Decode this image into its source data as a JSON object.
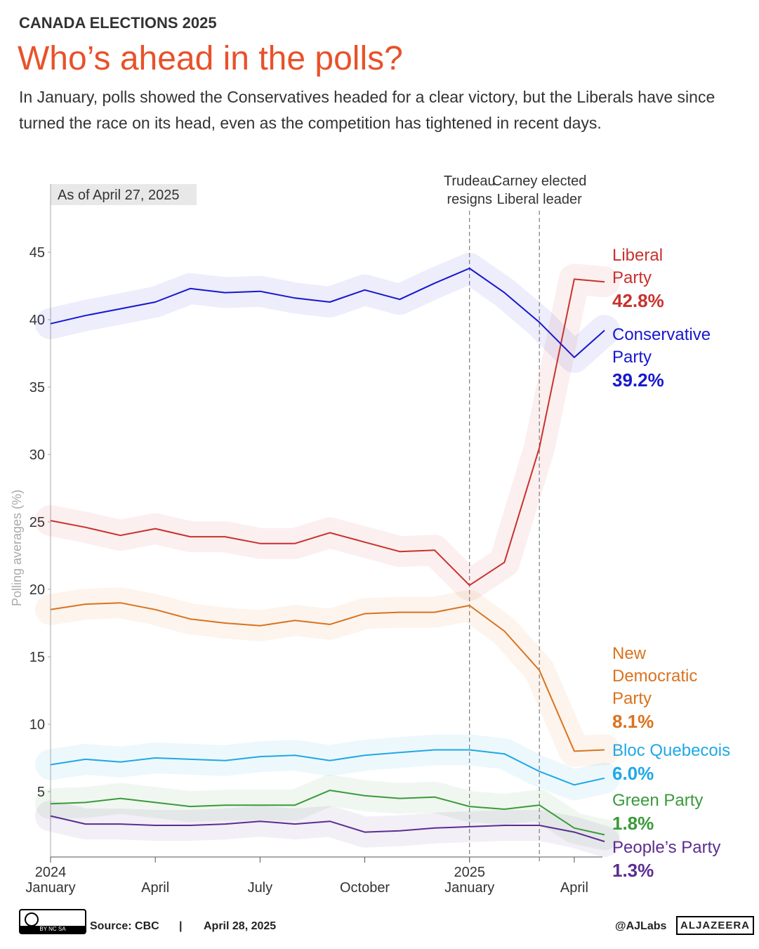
{
  "header": {
    "kicker": "CANADA ELECTIONS 2025",
    "title": "Who’s ahead in the polls?",
    "subtitle": "In January, polls showed the Conservatives headed for a clear victory, but the Liberals have since turned the race on its head,  even as the competition has tightened in recent days."
  },
  "chart_data": {
    "type": "line",
    "note": "As of April 27, 2025",
    "y_label": "Polling averages (%)",
    "x": [
      "2024-01",
      "2024-02",
      "2024-03",
      "2024-04",
      "2024-05",
      "2024-06",
      "2024-07",
      "2024-08",
      "2024-09",
      "2024-10",
      "2024-11",
      "2024-12",
      "2025-01",
      "2025-02",
      "2025-03",
      "2025-04",
      "2025-04-27"
    ],
    "xlim": [
      "2024-01",
      "2025-04-27"
    ],
    "xticks": [
      {
        "value": "2024-01",
        "label": "January",
        "year": "2024"
      },
      {
        "value": "2024-04",
        "label": "April"
      },
      {
        "value": "2024-07",
        "label": "July"
      },
      {
        "value": "2024-10",
        "label": "October"
      },
      {
        "value": "2025-01",
        "label": "January",
        "year": "2025"
      },
      {
        "value": "2025-04",
        "label": "April"
      }
    ],
    "ylim": [
      0,
      50
    ],
    "yticks": [
      5,
      10,
      15,
      20,
      25,
      30,
      35,
      40,
      45
    ],
    "annotations": [
      {
        "text": "Trudeau resigns",
        "x": "2025-01"
      },
      {
        "text": "Carney elected Liberal leader",
        "x": "2025-03"
      }
    ],
    "series": [
      {
        "name": "Liberal Party",
        "color": "#c8322e",
        "values": [
          25.1,
          24.6,
          24.0,
          24.5,
          23.9,
          23.9,
          23.4,
          23.4,
          24.2,
          23.5,
          22.8,
          22.9,
          20.3,
          22.0,
          30.5,
          43.0,
          42.8
        ],
        "value_labels": [
          null,
          null,
          null,
          null,
          null,
          null,
          null,
          null,
          null,
          null,
          null,
          null,
          null,
          null,
          null,
          null,
          "42.8%"
        ]
      },
      {
        "name": "Conservative Party",
        "color": "#1717cf",
        "values": [
          39.7,
          40.3,
          40.8,
          41.3,
          42.3,
          42.0,
          42.1,
          41.6,
          41.3,
          42.2,
          41.5,
          42.7,
          43.8,
          42.0,
          39.8,
          37.2,
          39.2
        ],
        "value_labels": [
          null,
          null,
          null,
          null,
          null,
          null,
          null,
          null,
          null,
          null,
          null,
          null,
          null,
          null,
          null,
          null,
          "39.2%"
        ]
      },
      {
        "name": "New Democratic Party",
        "color": "#d9731f",
        "values": [
          18.5,
          18.9,
          19.0,
          18.5,
          17.8,
          17.5,
          17.3,
          17.7,
          17.4,
          18.2,
          18.3,
          18.3,
          18.8,
          16.9,
          14.0,
          8.0,
          8.1
        ],
        "value_labels": [
          null,
          null,
          null,
          null,
          null,
          null,
          null,
          null,
          null,
          null,
          null,
          null,
          null,
          null,
          null,
          null,
          "8.1%"
        ]
      },
      {
        "name": "Bloc Quebecois",
        "color": "#1fa8e6",
        "values": [
          7.0,
          7.4,
          7.2,
          7.5,
          7.4,
          7.3,
          7.6,
          7.7,
          7.3,
          7.7,
          7.9,
          8.1,
          8.1,
          7.8,
          6.5,
          5.5,
          6.0
        ],
        "value_labels": [
          null,
          null,
          null,
          null,
          null,
          null,
          null,
          null,
          null,
          null,
          null,
          null,
          null,
          null,
          null,
          null,
          "6.0%"
        ]
      },
      {
        "name": "Green Party",
        "color": "#3a9a3a",
        "values": [
          4.1,
          4.2,
          4.5,
          4.2,
          3.9,
          4.0,
          4.0,
          4.0,
          5.1,
          4.7,
          4.5,
          4.6,
          3.9,
          3.7,
          4.0,
          2.3,
          1.8
        ],
        "value_labels": [
          null,
          null,
          null,
          null,
          null,
          null,
          null,
          null,
          null,
          null,
          null,
          null,
          null,
          null,
          null,
          null,
          "1.8%"
        ]
      },
      {
        "name": "People’s Party",
        "color": "#5b2d91",
        "values": [
          3.2,
          2.6,
          2.6,
          2.5,
          2.5,
          2.6,
          2.8,
          2.6,
          2.8,
          2.0,
          2.1,
          2.3,
          2.4,
          2.5,
          2.5,
          2.0,
          1.3
        ],
        "value_labels": [
          null,
          null,
          null,
          null,
          null,
          null,
          null,
          null,
          null,
          null,
          null,
          null,
          null,
          null,
          null,
          null,
          "1.3%"
        ]
      }
    ]
  },
  "footer": {
    "license": "BY NC SA",
    "source": "Source:  CBC",
    "separator": "|",
    "date": "April 28, 2025",
    "handle": "@AJLabs",
    "brand": "ALJAZEERA"
  }
}
